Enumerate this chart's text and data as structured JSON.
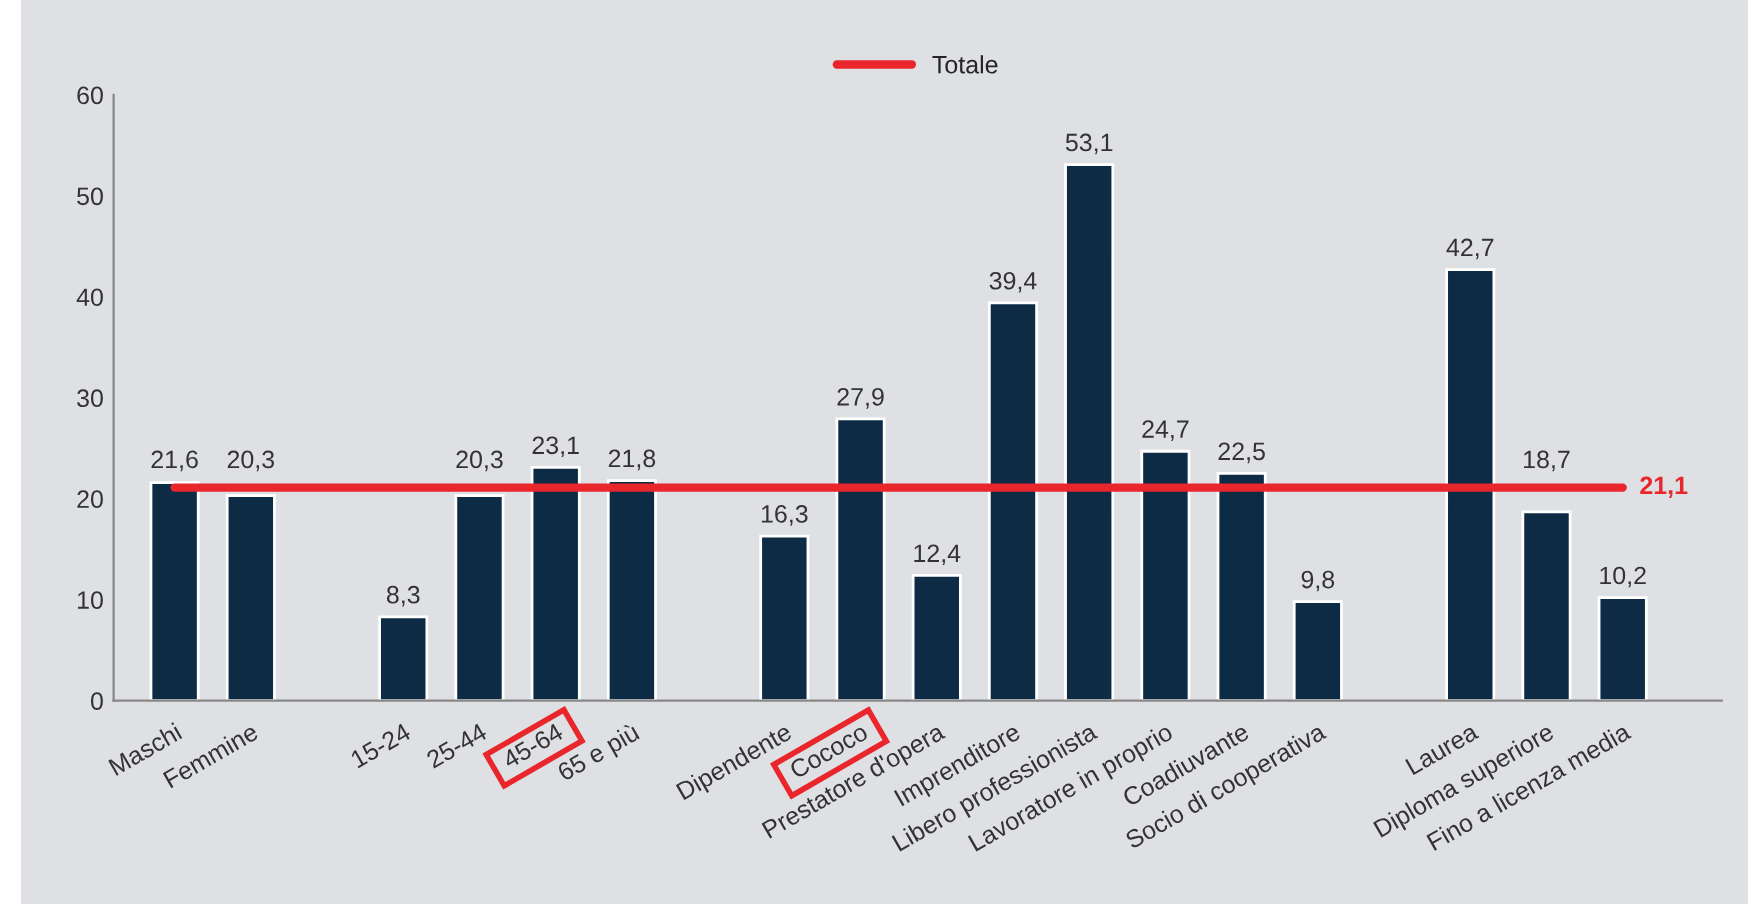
{
  "chart_data": {
    "type": "bar",
    "categories": [
      "Maschi",
      "Femmine",
      null,
      "15-24",
      "25-44",
      "45-64",
      "65 e più",
      null,
      "Dipendente",
      "Cococo",
      "Prestatore d'opera",
      "Imprenditore",
      "Libero professionista",
      "Lavoratore in proprio",
      "Coadiuvante",
      "Socio di cooperativa",
      null,
      "Laurea",
      "Diploma superiore",
      "Fino a licenza media"
    ],
    "series": [
      {
        "color": "#0d2b45",
        "values": [
          21.6,
          20.3,
          null,
          8.3,
          20.3,
          23.1,
          21.8,
          null,
          16.3,
          27.9,
          12.4,
          39.4,
          53.1,
          24.7,
          22.5,
          9.8,
          null,
          42.7,
          18.7,
          10.2
        ],
        "value_labels": [
          "21,6",
          "20,3",
          null,
          "8,3",
          "20,3",
          "23,1",
          "21,8",
          null,
          "16,3",
          "27,9",
          "12,4",
          "39,4",
          "53,1",
          "24,7",
          "22,5",
          "9,8",
          null,
          "42,7",
          "18,7",
          "10,2"
        ]
      },
      {
        "type": "line",
        "name": "Totale",
        "color": "#e8262b",
        "values": [
          21.1,
          21.1,
          21.1,
          21.1,
          21.1,
          21.1,
          21.1,
          21.1,
          21.1,
          21.1,
          21.1,
          21.1,
          21.1,
          21.1,
          21.1,
          21.1,
          21.1,
          21.1,
          21.1,
          21.1
        ],
        "value_labels": [
          null,
          null,
          null,
          null,
          null,
          null,
          null,
          null,
          null,
          null,
          null,
          null,
          null,
          null,
          null,
          null,
          null,
          null,
          null,
          "21,1"
        ]
      }
    ],
    "ylim": [
      0,
      60
    ],
    "yticks": [
      0,
      10,
      20,
      30,
      40,
      50,
      60
    ],
    "grid": false,
    "legend": "top",
    "marker": "none",
    "line_style": "solid"
  }
}
